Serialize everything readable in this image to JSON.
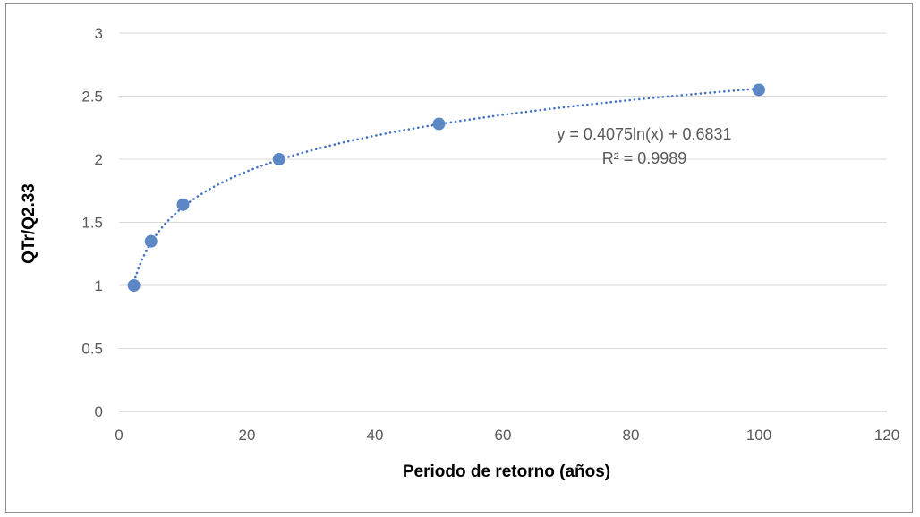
{
  "chart_data": {
    "type": "scatter",
    "title": "",
    "xlabel": "Periodo de retorno (años)",
    "ylabel": "QTr/Q2.33",
    "xlim": [
      0,
      120
    ],
    "ylim": [
      0,
      3
    ],
    "x_ticks": [
      0,
      20,
      40,
      60,
      80,
      100,
      120
    ],
    "y_ticks": [
      0,
      0.5,
      1,
      1.5,
      2,
      2.5,
      3
    ],
    "x_tick_labels": [
      "0",
      "20",
      "40",
      "60",
      "80",
      "100",
      "120"
    ],
    "y_tick_labels": [
      "0",
      "0.5",
      "1",
      "1.5",
      "2",
      "2.5",
      "3"
    ],
    "grid": "horizontal",
    "legend": "none",
    "series": [
      {
        "x": [
          2.33,
          5,
          10,
          25,
          50,
          100
        ],
        "y": [
          1.0,
          1.35,
          1.64,
          2.0,
          2.28,
          2.55
        ]
      }
    ],
    "trendline": {
      "type": "logarithmic",
      "a": 0.4075,
      "b": 0.6831,
      "x_range": [
        2.33,
        100
      ],
      "style": "dotted"
    },
    "annotations": {
      "equation": "y = 0.4075ln(x) + 0.6831",
      "r_squared": "R² = 0.9989"
    },
    "colors": {
      "marker": "#5b87c5",
      "trendline": "#4472c4",
      "grid": "#d9d9d9",
      "axis": "#bfbfbf",
      "text": "#595959"
    }
  }
}
